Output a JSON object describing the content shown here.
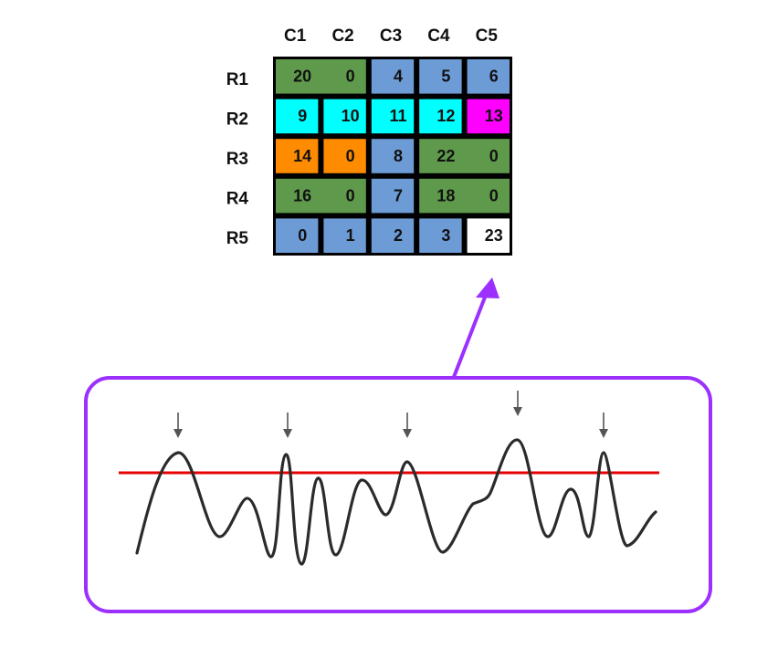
{
  "grid": {
    "columns": [
      "C1",
      "C2",
      "C3",
      "C4",
      "C5"
    ],
    "rows": [
      "R1",
      "R2",
      "R3",
      "R4",
      "R5"
    ],
    "colors": {
      "green": "#5f9a4c",
      "cyan": "#00ffff",
      "blue": "#6d9bd6",
      "magenta": "#ff00ff",
      "orange": "#ff8c00",
      "white": "#ffffff",
      "border": "#000000"
    },
    "regions": [
      {
        "name": "region-r1-green",
        "color": "green",
        "r": 0,
        "c": 0,
        "rs": 1,
        "cs": 2
      },
      {
        "name": "region-r1c3",
        "color": "blue",
        "r": 0,
        "c": 2,
        "rs": 1,
        "cs": 1
      },
      {
        "name": "region-r1c4",
        "color": "blue",
        "r": 0,
        "c": 3,
        "rs": 1,
        "cs": 1
      },
      {
        "name": "region-r1c5",
        "color": "blue",
        "r": 0,
        "c": 4,
        "rs": 1,
        "cs": 1
      },
      {
        "name": "region-r2c1",
        "color": "cyan",
        "r": 1,
        "c": 0,
        "rs": 1,
        "cs": 1
      },
      {
        "name": "region-r2c2",
        "color": "cyan",
        "r": 1,
        "c": 1,
        "rs": 1,
        "cs": 1
      },
      {
        "name": "region-r2c3",
        "color": "cyan",
        "r": 1,
        "c": 2,
        "rs": 1,
        "cs": 1
      },
      {
        "name": "region-r2c4",
        "color": "cyan",
        "r": 1,
        "c": 3,
        "rs": 1,
        "cs": 1
      },
      {
        "name": "region-r2c5",
        "color": "magenta",
        "r": 1,
        "c": 4,
        "rs": 1,
        "cs": 1
      },
      {
        "name": "region-r3c1",
        "color": "orange",
        "r": 2,
        "c": 0,
        "rs": 1,
        "cs": 1
      },
      {
        "name": "region-r3c2",
        "color": "orange",
        "r": 2,
        "c": 1,
        "rs": 1,
        "cs": 1
      },
      {
        "name": "region-r3c3",
        "color": "blue",
        "r": 2,
        "c": 2,
        "rs": 1,
        "cs": 1
      },
      {
        "name": "region-r3-green",
        "color": "green",
        "r": 2,
        "c": 3,
        "rs": 1,
        "cs": 2
      },
      {
        "name": "region-r4-green-left",
        "color": "green",
        "r": 3,
        "c": 0,
        "rs": 1,
        "cs": 2
      },
      {
        "name": "region-r4c3",
        "color": "blue",
        "r": 3,
        "c": 2,
        "rs": 1,
        "cs": 1
      },
      {
        "name": "region-r4-green-right",
        "color": "green",
        "r": 3,
        "c": 3,
        "rs": 1,
        "cs": 2
      },
      {
        "name": "region-r5c1",
        "color": "blue",
        "r": 4,
        "c": 0,
        "rs": 1,
        "cs": 1
      },
      {
        "name": "region-r5c2",
        "color": "blue",
        "r": 4,
        "c": 1,
        "rs": 1,
        "cs": 1
      },
      {
        "name": "region-r5c3",
        "color": "blue",
        "r": 4,
        "c": 2,
        "rs": 1,
        "cs": 1
      },
      {
        "name": "region-r5c4",
        "color": "blue",
        "r": 4,
        "c": 3,
        "rs": 1,
        "cs": 1
      },
      {
        "name": "region-r5c5",
        "color": "white",
        "r": 4,
        "c": 4,
        "rs": 1,
        "cs": 1
      }
    ],
    "values": [
      [
        "20",
        "0",
        "4",
        "5",
        "6"
      ],
      [
        "9",
        "10",
        "11",
        "12",
        "13"
      ],
      [
        "14",
        "0",
        "8",
        "22",
        "0"
      ],
      [
        "16",
        "0",
        "7",
        "18",
        "0"
      ],
      [
        "0",
        "1",
        "2",
        "3",
        "23"
      ]
    ]
  },
  "connector": {
    "color": "#9b30ff"
  },
  "signal_panel": {
    "border_color": "#9b30ff",
    "waveform_color": "#2b2b2b",
    "threshold_color": "#e60000",
    "peak_marker_color": "#555555",
    "peak_marker_count": 5
  }
}
